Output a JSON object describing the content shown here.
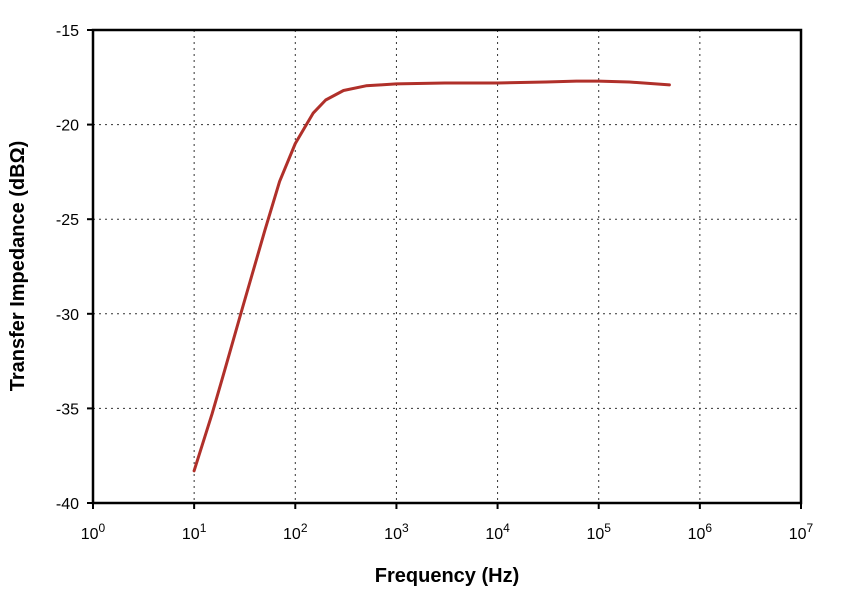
{
  "chart_data": {
    "type": "line",
    "title": "",
    "xlabel": "Frequency (Hz)",
    "ylabel": "Transfer Impedance (dBΩ)",
    "x_scale": "log",
    "xlim": [
      1,
      10000000
    ],
    "ylim": [
      -40,
      -15
    ],
    "x_ticks": [
      {
        "base": "10",
        "exp": "0"
      },
      {
        "base": "10",
        "exp": "1"
      },
      {
        "base": "10",
        "exp": "2"
      },
      {
        "base": "10",
        "exp": "3"
      },
      {
        "base": "10",
        "exp": "4"
      },
      {
        "base": "10",
        "exp": "5"
      },
      {
        "base": "10",
        "exp": "6"
      },
      {
        "base": "10",
        "exp": "7"
      }
    ],
    "y_ticks": [
      "-15",
      "-20",
      "-25",
      "-30",
      "-35",
      "-40"
    ],
    "grid": true,
    "legend": "none",
    "series": [
      {
        "color": "#B0302A",
        "x": [
          10,
          15,
          20,
          30,
          50,
          70,
          100,
          150,
          200,
          300,
          500,
          700,
          1000,
          3000,
          10000,
          30000,
          60000,
          100000,
          200000,
          500000
        ],
        "y": [
          -38.3,
          -35.3,
          -33.0,
          -29.7,
          -25.6,
          -23.0,
          -21.0,
          -19.4,
          -18.7,
          -18.2,
          -17.95,
          -17.9,
          -17.85,
          -17.8,
          -17.8,
          -17.75,
          -17.7,
          -17.7,
          -17.75,
          -17.9
        ]
      }
    ]
  }
}
